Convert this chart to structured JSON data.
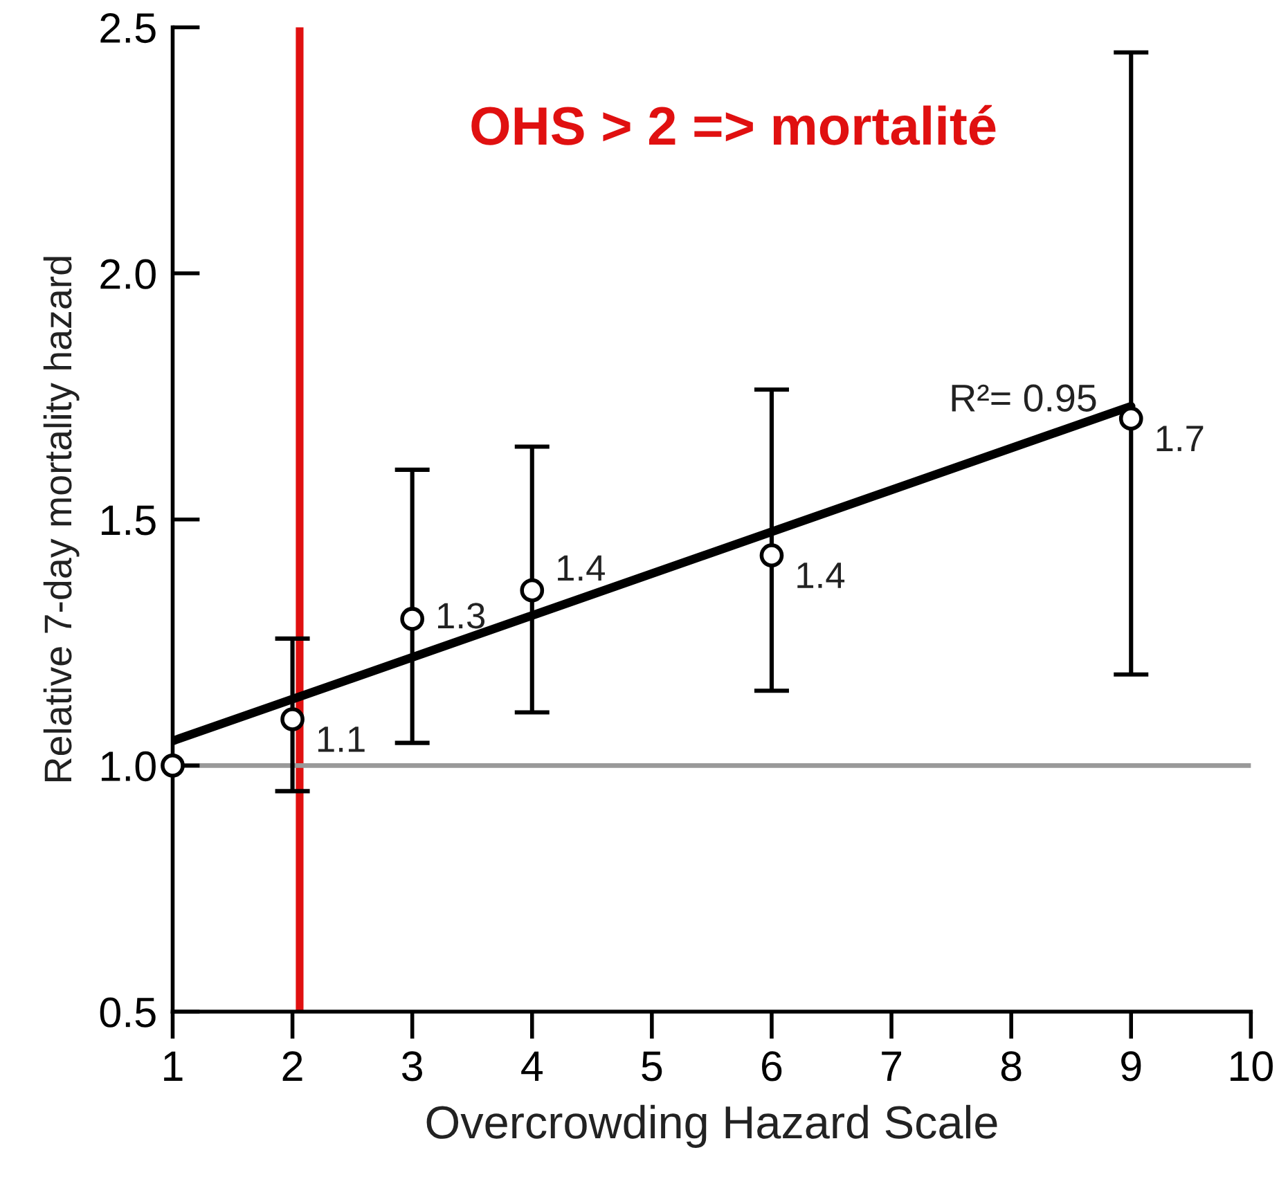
{
  "chart_data": {
    "type": "scatter",
    "xlabel": "Overcrowding Hazard Scale",
    "ylabel": "Relative 7-day mortality hazard",
    "xlim": [
      1,
      10
    ],
    "xticks": [
      1,
      2,
      3,
      4,
      5,
      6,
      7,
      8,
      9,
      10
    ],
    "ylim": [
      0.5,
      2.5
    ],
    "yticks": [
      {
        "value": 0.5,
        "label": "0.5"
      },
      {
        "value": 1,
        "label": "1.0"
      },
      {
        "value": 1.5,
        "label": "1.5"
      },
      {
        "value": 2,
        "label": "2.0"
      },
      {
        "value": 2.5,
        "label": "2.5"
      }
    ],
    "grid": false,
    "series": [
      {
        "type": "line",
        "marker": "none",
        "color": "#000000",
        "x": [
          1,
          9
        ],
        "values": [
          1.05,
          1.73
        ]
      },
      {
        "marker": "circle",
        "color": "#000000",
        "x": [
          1,
          2,
          3,
          4,
          6,
          9
        ],
        "values": [
          1.0,
          1.094,
          1.298,
          1.356,
          1.427,
          1.705
        ],
        "errors": [
          null,
          [
            0.948,
            1.258
          ],
          [
            1.046,
            1.601
          ],
          [
            1.108,
            1.648
          ],
          [
            1.152,
            1.764
          ],
          [
            1.185,
            2.449
          ]
        ],
        "value_labels": [
          null,
          "1.1",
          "1.3",
          "1.4",
          "1.4",
          "1.7"
        ]
      }
    ],
    "ref_lines": [
      {
        "axis": "x",
        "value": 2.06,
        "color": "#e01010"
      },
      {
        "axis": "y",
        "value": 1.0,
        "color": "#999999"
      }
    ],
    "annotations": [
      "OHS > 2 => mortalité",
      "R²= 0.95"
    ]
  }
}
